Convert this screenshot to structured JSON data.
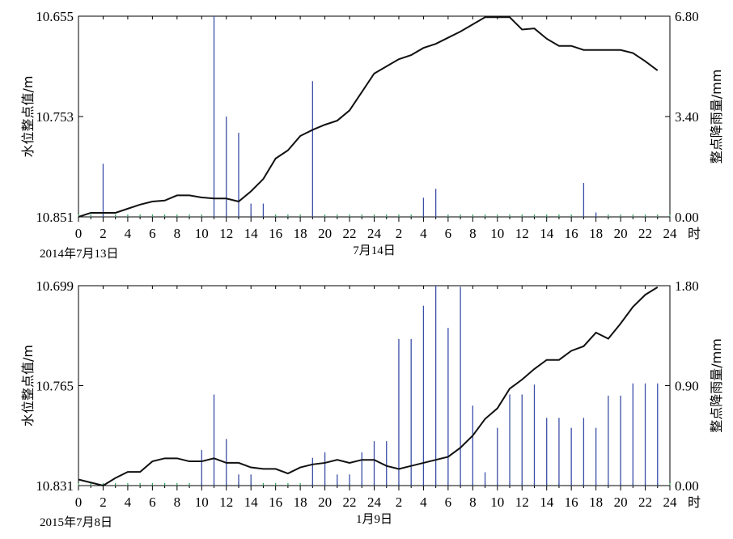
{
  "chart_data": [
    {
      "type": "line+bar",
      "y_left_label": "水位整点值/m",
      "y_right_label": "整点降雨量/mm",
      "hour_unit_label": "时",
      "date_start_label": "2014年7月13日",
      "date_mid_label": "7月14日",
      "y_left_ticks": [
        "10.655",
        "10.753",
        "10.851"
      ],
      "y_left_range": [
        10.851,
        10.655
      ],
      "y_right_ticks": [
        "6.80",
        "3.40",
        "0.00"
      ],
      "y_right_range": [
        0,
        6.8
      ],
      "x_tick_labels": [
        "0",
        "2",
        "4",
        "6",
        "8",
        "10",
        "12",
        "14",
        "16",
        "18",
        "20",
        "22",
        "24",
        "2",
        "4",
        "6",
        "8",
        "10",
        "12",
        "14",
        "16",
        "18",
        "20",
        "22",
        "24"
      ],
      "x_range": [
        0,
        48
      ],
      "series": [
        {
          "kind": "water_level",
          "x": [
            0,
            1,
            2,
            3,
            4,
            5,
            6,
            7,
            8,
            9,
            10,
            11,
            12,
            13,
            14,
            15,
            16,
            17,
            18,
            19,
            20,
            21,
            22,
            23,
            24,
            25,
            26,
            27,
            28,
            29,
            30,
            31,
            32,
            33,
            34,
            35,
            36,
            37,
            38,
            39,
            40,
            41,
            42,
            43,
            44,
            45,
            46,
            47
          ],
          "values": [
            10.851,
            10.847,
            10.847,
            10.847,
            10.843,
            10.839,
            10.836,
            10.835,
            10.83,
            10.83,
            10.832,
            10.833,
            10.833,
            10.836,
            10.826,
            10.814,
            10.794,
            10.786,
            10.772,
            10.766,
            10.761,
            10.757,
            10.747,
            10.729,
            10.711,
            10.704,
            10.697,
            10.693,
            10.686,
            10.682,
            10.676,
            10.67,
            10.663,
            10.656,
            10.656,
            10.656,
            10.668,
            10.667,
            10.677,
            10.684,
            10.684,
            10.688,
            10.688,
            10.688,
            10.688,
            10.691,
            10.699,
            10.708
          ]
        },
        {
          "kind": "rainfall",
          "x": [
            2,
            11,
            12,
            13,
            14,
            15,
            19,
            28,
            29,
            41,
            42
          ],
          "values": [
            1.8,
            6.8,
            3.4,
            2.85,
            0.45,
            0.45,
            4.6,
            0.65,
            0.95,
            1.15,
            0.15
          ]
        }
      ]
    },
    {
      "type": "line+bar",
      "y_left_label": "水位整点值/m",
      "y_right_label": "整点降雨量/mm",
      "hour_unit_label": "时",
      "date_start_label": "2015年7月8日",
      "date_mid_label": "1月9日",
      "y_left_ticks": [
        "10.699",
        "10.765",
        "10.831"
      ],
      "y_left_range": [
        10.831,
        10.699
      ],
      "y_right_ticks": [
        "1.80",
        "0.90",
        "0.00"
      ],
      "y_right_range": [
        0,
        1.8
      ],
      "x_tick_labels": [
        "0",
        "2",
        "4",
        "6",
        "8",
        "10",
        "12",
        "14",
        "16",
        "18",
        "20",
        "22",
        "24",
        "2",
        "4",
        "6",
        "8",
        "10",
        "12",
        "14",
        "16",
        "18",
        "20",
        "22",
        "24"
      ],
      "x_range": [
        0,
        48
      ],
      "series": [
        {
          "kind": "water_level",
          "x": [
            0,
            1,
            2,
            3,
            4,
            5,
            6,
            7,
            8,
            9,
            10,
            11,
            12,
            13,
            14,
            15,
            16,
            17,
            18,
            19,
            20,
            21,
            22,
            23,
            24,
            25,
            26,
            27,
            28,
            29,
            30,
            31,
            32,
            33,
            34,
            35,
            36,
            37,
            38,
            39,
            40,
            41,
            42,
            43,
            44,
            45,
            46,
            47
          ],
          "values": [
            10.827,
            10.829,
            10.831,
            10.826,
            10.822,
            10.822,
            10.815,
            10.813,
            10.813,
            10.815,
            10.815,
            10.813,
            10.816,
            10.816,
            10.819,
            10.82,
            10.82,
            10.823,
            10.819,
            10.817,
            10.816,
            10.814,
            10.816,
            10.814,
            10.814,
            10.818,
            10.82,
            10.818,
            10.816,
            10.814,
            10.812,
            10.806,
            10.798,
            10.787,
            10.78,
            10.767,
            10.761,
            10.754,
            10.748,
            10.748,
            10.742,
            10.739,
            10.73,
            10.734,
            10.724,
            10.713,
            10.705,
            10.7
          ]
        },
        {
          "kind": "rainfall",
          "x": [
            10,
            11,
            12,
            13,
            14,
            19,
            20,
            21,
            22,
            23,
            24,
            25,
            26,
            27,
            28,
            29,
            30,
            31,
            32,
            33,
            34,
            35,
            36,
            37,
            38,
            39,
            40,
            41,
            42,
            43,
            44,
            45,
            46,
            47
          ],
          "values": [
            0.32,
            0.82,
            0.42,
            0.1,
            0.1,
            0.25,
            0.3,
            0.1,
            0.1,
            0.3,
            0.4,
            0.4,
            1.32,
            1.32,
            1.62,
            1.8,
            1.42,
            1.79,
            0.72,
            0.12,
            0.52,
            0.82,
            0.82,
            0.91,
            0.61,
            0.61,
            0.52,
            0.61,
            0.52,
            0.81,
            0.81,
            0.92,
            0.92,
            0.92
          ]
        }
      ]
    }
  ]
}
